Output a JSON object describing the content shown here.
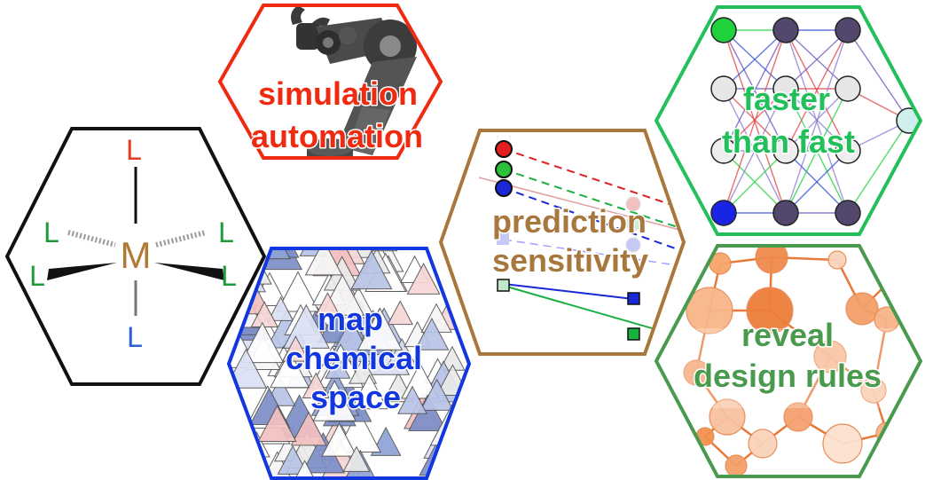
{
  "panels": {
    "complex": {
      "border_color": "#111111",
      "metal": {
        "symbol": "M",
        "color": "#b07a35"
      },
      "ligands": [
        {
          "symbol": "L",
          "color": "#e53a1e"
        },
        {
          "symbol": "L",
          "color": "#1e9a3a"
        },
        {
          "symbol": "L",
          "color": "#1e9a3a"
        },
        {
          "symbol": "L",
          "color": "#1e9a3a"
        },
        {
          "symbol": "L",
          "color": "#1e9a3a"
        },
        {
          "symbol": "L",
          "color": "#2a5fd8"
        }
      ]
    },
    "simulation": {
      "lines": [
        "simulation",
        "automation"
      ],
      "color": "#ee2a10",
      "border_color": "#ee2a10"
    },
    "chemical_space": {
      "lines": [
        "map",
        "chemical",
        "space"
      ],
      "color": "#1236e0",
      "border_color": "#1236e0"
    },
    "prediction": {
      "lines": [
        "prediction",
        "sensitivity"
      ],
      "color": "#a8773d",
      "border_color": "#a8773d"
    },
    "faster": {
      "lines": [
        "faster",
        "than fast"
      ],
      "color": "#22c05a",
      "border_color": "#22c05a"
    },
    "design": {
      "lines": [
        "reveal",
        "design rules"
      ],
      "color": "#4a9a4e",
      "border_color": "#4a9a4e"
    }
  },
  "icons": [
    "robot-arm-icon",
    "neural-network-icon"
  ]
}
